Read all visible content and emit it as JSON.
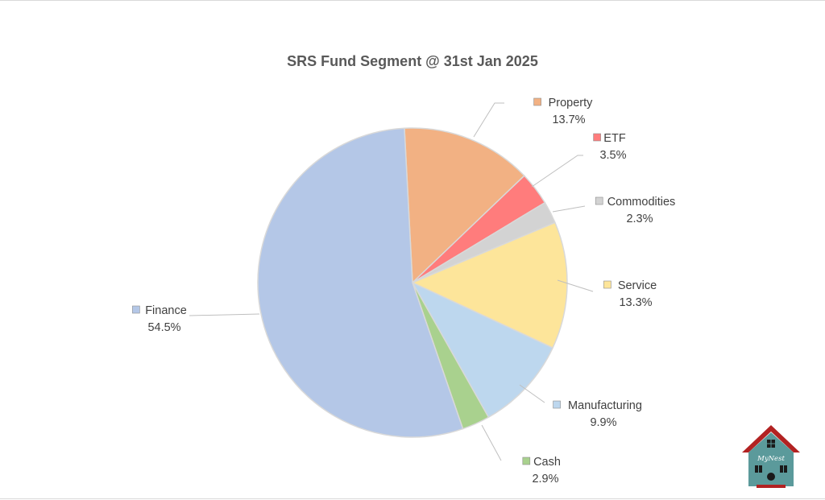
{
  "chart_data": {
    "type": "pie",
    "title": "SRS Fund Segment @ 31st Jan 2025",
    "slices": [
      {
        "label": "Property",
        "value": 13.7,
        "value_label": "13.7%",
        "color": "#F2B183"
      },
      {
        "label": "ETF",
        "value": 3.5,
        "value_label": "3.5%",
        "color": "#FF7C7C"
      },
      {
        "label": "Commodities",
        "value": 2.3,
        "value_label": "2.3%",
        "color": "#D3D3D3"
      },
      {
        "label": "Service",
        "value": 13.3,
        "value_label": "13.3%",
        "color": "#FDE59A"
      },
      {
        "label": "Manufacturing",
        "value": 9.9,
        "value_label": "9.9%",
        "color": "#BDD7EE"
      },
      {
        "label": "Cash",
        "value": 2.9,
        "value_label": "2.9%",
        "color": "#A9D18E"
      },
      {
        "label": "Finance",
        "value": 54.5,
        "value_label": "54.5%",
        "color": "#B4C7E7"
      }
    ],
    "start_angle_deg": -3,
    "direction": "clockwise"
  },
  "logo": {
    "text": "MyNest",
    "roof_color": "#B22222",
    "house_color": "#5B9A9B"
  }
}
